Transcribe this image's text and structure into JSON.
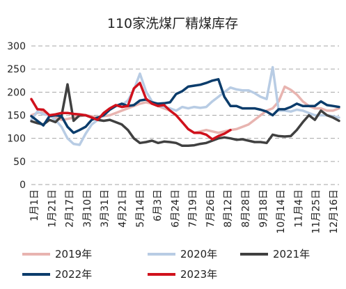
{
  "chart_data": {
    "type": "line",
    "title": "110家洗煤厂精煤库存",
    "ylim": [
      0,
      300
    ],
    "yticks": [
      0,
      50,
      100,
      150,
      200,
      250,
      300
    ],
    "grid": "horizontal-dashed",
    "legend_position": "bottom",
    "x_tick_labels": [
      "1月1日",
      "1月21日",
      "2月17日",
      "3月10日",
      "3月31日",
      "4月21日",
      "5月14日",
      "6月3日",
      "6月24日",
      "7月19日",
      "7月26日",
      "8月12日",
      "8月28日",
      "9月18日",
      "10月14日",
      "11月4日",
      "11月25日",
      "12月16日"
    ],
    "n_points": 52,
    "series": [
      {
        "name": "2019年",
        "color": "#e8b4b0",
        "values": [
          150,
          155,
          158,
          150,
          145,
          140,
          142,
          145,
          148,
          150,
          148,
          145,
          148,
          150,
          155,
          160,
          165,
          170,
          175,
          178,
          175,
          170,
          165,
          160,
          150,
          135,
          120,
          112,
          115,
          118,
          115,
          112,
          115,
          118,
          120,
          125,
          130,
          140,
          150,
          160,
          165,
          180,
          212,
          205,
          195,
          180,
          170,
          165,
          165,
          160,
          160,
          165
        ]
      },
      {
        "name": "2020年",
        "color": "#b8cce4",
        "values": [
          140,
          158,
          152,
          150,
          140,
          125,
          100,
          88,
          86,
          110,
          130,
          140,
          150,
          162,
          170,
          172,
          182,
          205,
          240,
          202,
          180,
          172,
          168,
          165,
          160,
          168,
          165,
          168,
          166,
          168,
          180,
          190,
          200,
          210,
          206,
          204,
          204,
          198,
          190,
          185,
          254,
          160,
          160,
          158,
          162,
          160,
          155,
          150,
          150,
          150,
          148,
          145
        ]
      },
      {
        "name": "2021年",
        "color": "#404040",
        "values": [
          137,
          133,
          130,
          140,
          135,
          148,
          217,
          138,
          150,
          150,
          145,
          140,
          138,
          140,
          135,
          130,
          118,
          100,
          90,
          92,
          95,
          90,
          93,
          92,
          90,
          84,
          84,
          85,
          88,
          90,
          95,
          100,
          102,
          100,
          97,
          98,
          95,
          92,
          92,
          90,
          108,
          105,
          104,
          105,
          118,
          135,
          150,
          140,
          160,
          150,
          145,
          138
        ]
      },
      {
        "name": "2022年",
        "color": "#0b3c6b",
        "values": [
          148,
          138,
          128,
          148,
          150,
          148,
          125,
          112,
          118,
          125,
          140,
          145,
          150,
          162,
          170,
          175,
          170,
          172,
          182,
          184,
          178,
          175,
          176,
          178,
          196,
          202,
          212,
          214,
          216,
          220,
          225,
          228,
          190,
          170,
          170,
          165,
          165,
          165,
          162,
          158,
          150,
          163,
          163,
          168,
          175,
          170,
          170,
          170,
          180,
          172,
          170,
          168
        ]
      },
      {
        "name": "2023年",
        "color": "#d0111c",
        "values": [
          185,
          163,
          162,
          150,
          152,
          155,
          155,
          153,
          152,
          150,
          145,
          140,
          155,
          165,
          172,
          168,
          170,
          208,
          220,
          186,
          175,
          170,
          172,
          160,
          150,
          135,
          120,
          112,
          112,
          108,
          98,
          105,
          110,
          118,
          null,
          null,
          null,
          null,
          null,
          null,
          null,
          null,
          null,
          null,
          null,
          null,
          null,
          null,
          null,
          null,
          null,
          null
        ]
      }
    ]
  }
}
